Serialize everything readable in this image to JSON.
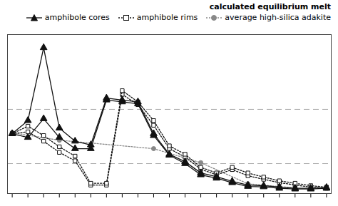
{
  "chart_data": {
    "type": "line",
    "x": [
      0,
      1,
      2,
      3,
      4,
      5,
      6,
      7,
      8,
      9,
      10,
      11,
      12,
      13,
      14,
      15,
      16,
      17,
      18,
      19,
      20
    ],
    "xlim": [
      -0.3,
      20.3
    ],
    "xticks": [
      0,
      1,
      2,
      3,
      4,
      5,
      6,
      7,
      8,
      9,
      10,
      11,
      12,
      13,
      14,
      15,
      16,
      17,
      18,
      19,
      20
    ],
    "ylim": [
      0.0,
      8.5
    ],
    "tick_labels": false,
    "grid": false,
    "legend": "upper right",
    "legend_title": "calculated equilibrium melt",
    "series": [
      {
        "name": "amphibole cores",
        "color": "#111111",
        "marker": "triangle",
        "line_style": "solid",
        "values": [
          3.2,
          3.9,
          7.8,
          3.5,
          2.8,
          2.6,
          5.1,
          5.0,
          4.9,
          3.2,
          2.1,
          1.7,
          1.1,
          0.9,
          0.65,
          0.45,
          0.42,
          0.35,
          0.28,
          0.28,
          0.32
        ]
      },
      {
        "name": "amphibole cores",
        "color": "#111111",
        "marker": "triangle",
        "line_style": "solid",
        "values": [
          3.2,
          3.0,
          4.0,
          3.0,
          2.4,
          2.4,
          5.0,
          4.9,
          4.8,
          3.1,
          2.05,
          1.6,
          1.0,
          0.82,
          0.58,
          0.38,
          0.36,
          0.28,
          0.24,
          0.24,
          0.28
        ]
      },
      {
        "name": "amphibole rims",
        "color": "#111111",
        "marker": "square",
        "line_style": "dotted",
        "values": [
          3.2,
          3.6,
          3.1,
          2.5,
          2.0,
          0.55,
          0.55,
          5.5,
          4.9,
          3.9,
          2.55,
          2.1,
          1.4,
          1.1,
          1.4,
          1.1,
          0.88,
          0.68,
          0.55,
          0.42,
          0.34
        ]
      },
      {
        "name": "amphibole rims",
        "color": "#111111",
        "marker": "square",
        "line_style": "dotted",
        "values": [
          3.2,
          3.3,
          2.8,
          2.2,
          1.75,
          0.45,
          0.45,
          5.3,
          4.75,
          3.65,
          2.4,
          1.95,
          1.3,
          1.0,
          1.28,
          0.95,
          0.76,
          0.58,
          0.46,
          0.34,
          0.28
        ]
      },
      {
        "name": "average high-silica adakite",
        "color": "#888888",
        "marker": "circle",
        "line_style": "dotted",
        "x": [
          0,
          3,
          9,
          12,
          15,
          18
        ],
        "values": [
          3.25,
          2.85,
          2.4,
          1.65,
          0.52,
          0.3
        ]
      }
    ],
    "hlines": [
      {
        "y": 4.5,
        "color": "#aaaaaa"
      },
      {
        "y": 1.6,
        "color": "#aaaaaa"
      }
    ]
  }
}
